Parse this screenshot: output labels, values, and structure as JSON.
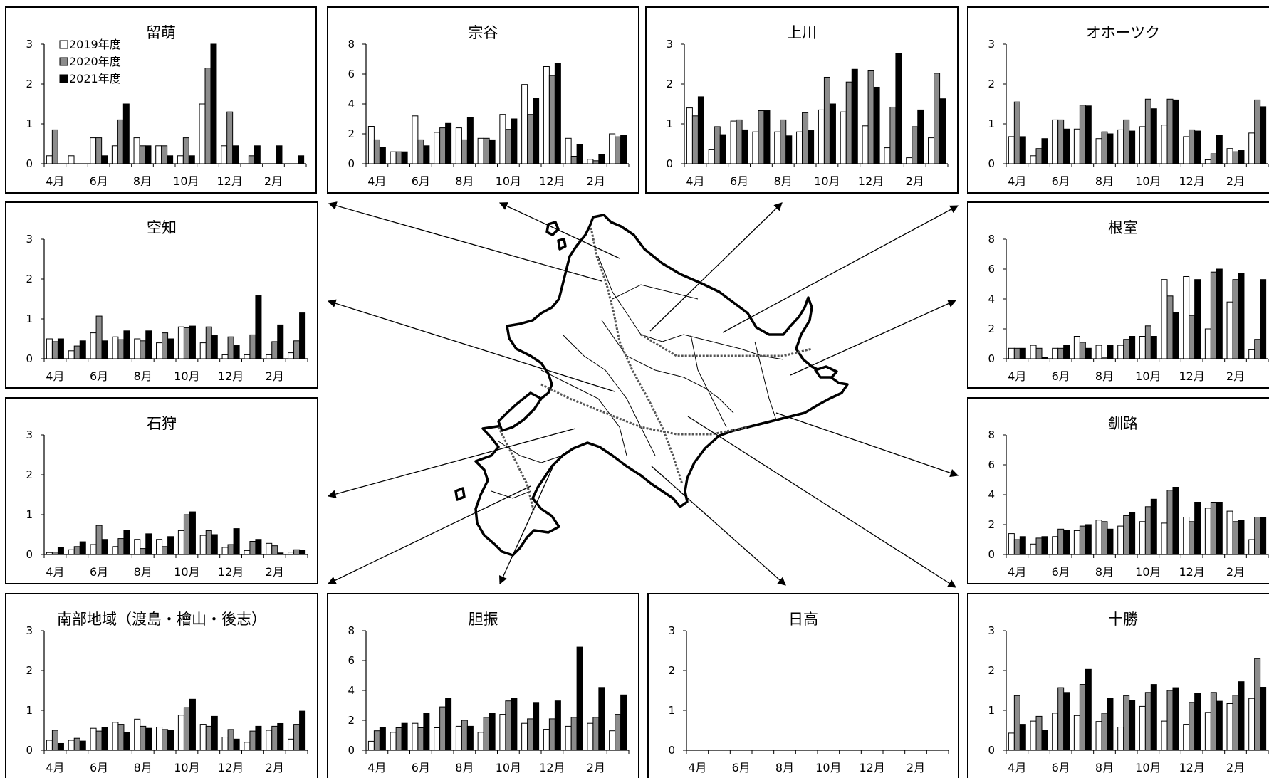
{
  "legend": {
    "labels": [
      "2019年度",
      "2020年度",
      "2021年度"
    ],
    "colors": [
      "#ffffff",
      "#8c8c8c",
      "#000000"
    ]
  },
  "map": {
    "description_icon": "hokkaido-map-icon"
  },
  "chart_data": [
    {
      "id": "rumoi",
      "type": "bar",
      "title": "留萌",
      "ylim": [
        0,
        3
      ],
      "yticks": [
        0,
        1,
        2,
        3
      ],
      "categories": [
        "4月",
        "5月",
        "6月",
        "7月",
        "8月",
        "9月",
        "10月",
        "11月",
        "12月",
        "1月",
        "2月",
        "3月"
      ],
      "xtick_labels": [
        "4月",
        "6月",
        "8月",
        "10月",
        "12月",
        "2月"
      ],
      "series": [
        {
          "name": "2019年度",
          "values": [
            0.2,
            0.2,
            0.65,
            0.45,
            0.65,
            0.45,
            0.2,
            1.5,
            0.45,
            0,
            0,
            0
          ]
        },
        {
          "name": "2020年度",
          "values": [
            0.85,
            0,
            0.65,
            1.1,
            0.45,
            0.45,
            0.65,
            2.4,
            1.3,
            0.2,
            0,
            0
          ]
        },
        {
          "name": "2021年度",
          "values": [
            0,
            0,
            0.2,
            1.5,
            0.45,
            0.2,
            0.2,
            3.0,
            0.45,
            0.45,
            0.45,
            0.2
          ]
        }
      ]
    },
    {
      "id": "soya",
      "type": "bar",
      "title": "宗谷",
      "ylim": [
        0,
        8
      ],
      "yticks": [
        0,
        2,
        4,
        6,
        8
      ],
      "categories": [
        "4月",
        "5月",
        "6月",
        "7月",
        "8月",
        "9月",
        "10月",
        "11月",
        "12月",
        "1月",
        "2月",
        "3月"
      ],
      "xtick_labels": [
        "4月",
        "6月",
        "8月",
        "10月",
        "12月",
        "2月"
      ],
      "series": [
        {
          "name": "2019年度",
          "values": [
            2.5,
            0.8,
            3.2,
            2.1,
            2.4,
            1.7,
            3.3,
            5.3,
            6.5,
            1.7,
            0.3,
            2.0
          ]
        },
        {
          "name": "2020年度",
          "values": [
            1.6,
            0.8,
            1.6,
            2.4,
            1.6,
            1.7,
            2.3,
            3.3,
            5.9,
            0.5,
            0.2,
            1.8
          ]
        },
        {
          "name": "2021年度",
          "values": [
            1.1,
            0.8,
            1.2,
            2.7,
            3.1,
            1.6,
            3.0,
            4.4,
            6.7,
            1.3,
            0.6,
            1.9
          ]
        }
      ]
    },
    {
      "id": "kamikawa",
      "type": "bar",
      "title": "上川",
      "ylim": [
        0,
        3
      ],
      "yticks": [
        0,
        1,
        2,
        3
      ],
      "categories": [
        "4月",
        "5月",
        "6月",
        "7月",
        "8月",
        "9月",
        "10月",
        "11月",
        "12月",
        "1月",
        "2月",
        "3月"
      ],
      "xtick_labels": [
        "4月",
        "6月",
        "8月",
        "10月",
        "12月",
        "2月"
      ],
      "series": [
        {
          "name": "2019年度",
          "values": [
            1.4,
            0.35,
            1.07,
            0.8,
            0.8,
            0.8,
            1.35,
            1.3,
            0.95,
            0.4,
            0.15,
            0.65
          ]
        },
        {
          "name": "2020年度",
          "values": [
            1.2,
            0.93,
            1.1,
            1.33,
            1.1,
            1.28,
            2.17,
            2.05,
            2.33,
            1.42,
            0.93,
            2.27
          ]
        },
        {
          "name": "2021年度",
          "values": [
            1.68,
            0.73,
            0.85,
            1.33,
            0.7,
            0.83,
            1.5,
            2.37,
            1.92,
            2.77,
            1.35,
            1.63
          ]
        }
      ]
    },
    {
      "id": "okhotsk",
      "type": "bar",
      "title": "オホーツク",
      "ylim": [
        0,
        3
      ],
      "yticks": [
        0,
        1,
        2,
        3
      ],
      "categories": [
        "4月",
        "5月",
        "6月",
        "7月",
        "8月",
        "9月",
        "10月",
        "11月",
        "12月",
        "1月",
        "2月",
        "3月"
      ],
      "xtick_labels": [
        "4月",
        "6月",
        "8月",
        "10月",
        "12月",
        "2月"
      ],
      "series": [
        {
          "name": "2019年度",
          "values": [
            0.68,
            0.2,
            1.1,
            0.87,
            0.63,
            0.85,
            0.93,
            0.97,
            0.68,
            0.1,
            0.38,
            0.77
          ]
        },
        {
          "name": "2020年度",
          "values": [
            1.55,
            0.38,
            1.1,
            1.47,
            0.8,
            1.1,
            1.62,
            1.62,
            0.85,
            0.25,
            0.3,
            1.6
          ]
        },
        {
          "name": "2021年度",
          "values": [
            0.68,
            0.63,
            0.87,
            1.45,
            0.75,
            0.82,
            1.38,
            1.6,
            0.82,
            0.72,
            0.33,
            1.43
          ]
        }
      ]
    },
    {
      "id": "sorachi",
      "type": "bar",
      "title": "空知",
      "ylim": [
        0,
        3
      ],
      "yticks": [
        0,
        1,
        2,
        3
      ],
      "categories": [
        "4月",
        "5月",
        "6月",
        "7月",
        "8月",
        "9月",
        "10月",
        "11月",
        "12月",
        "1月",
        "2月",
        "3月"
      ],
      "xtick_labels": [
        "4月",
        "6月",
        "8月",
        "10月",
        "12月",
        "2月"
      ],
      "series": [
        {
          "name": "2019年度",
          "values": [
            0.5,
            0.2,
            0.65,
            0.55,
            0.5,
            0.4,
            0.8,
            0.4,
            0.1,
            0.1,
            0.1,
            0.15
          ]
        },
        {
          "name": "2020年度",
          "values": [
            0.43,
            0.32,
            1.07,
            0.48,
            0.45,
            0.65,
            0.78,
            0.8,
            0.55,
            0.6,
            0.43,
            0.45
          ]
        },
        {
          "name": "2021年度",
          "values": [
            0.5,
            0.45,
            0.45,
            0.7,
            0.7,
            0.5,
            0.82,
            0.58,
            0.33,
            1.58,
            0.85,
            1.15
          ]
        }
      ]
    },
    {
      "id": "nemuro",
      "type": "bar",
      "title": "根室",
      "ylim": [
        0,
        8
      ],
      "yticks": [
        0,
        2,
        4,
        6,
        8
      ],
      "categories": [
        "4月",
        "5月",
        "6月",
        "7月",
        "8月",
        "9月",
        "10月",
        "11月",
        "12月",
        "1月",
        "2月",
        "3月"
      ],
      "xtick_labels": [
        "4月",
        "6月",
        "8月",
        "10月",
        "12月",
        "2月"
      ],
      "series": [
        {
          "name": "2019年度",
          "values": [
            0.7,
            0.9,
            0.7,
            1.5,
            0.9,
            0.9,
            1.5,
            5.3,
            5.5,
            2.0,
            3.8,
            0.6
          ]
        },
        {
          "name": "2020年度",
          "values": [
            0.7,
            0.7,
            0.7,
            1.1,
            0.1,
            1.3,
            2.2,
            4.2,
            2.9,
            5.8,
            5.3,
            1.3
          ]
        },
        {
          "name": "2021年度",
          "values": [
            0.7,
            0.1,
            0.9,
            0.7,
            0.9,
            1.5,
            1.5,
            3.1,
            5.3,
            6.0,
            5.7,
            5.3
          ]
        }
      ]
    },
    {
      "id": "ishikari",
      "type": "bar",
      "title": "石狩",
      "ylim": [
        0,
        3
      ],
      "yticks": [
        0,
        1,
        2,
        3
      ],
      "categories": [
        "4月",
        "5月",
        "6月",
        "7月",
        "8月",
        "9月",
        "10月",
        "11月",
        "12月",
        "1月",
        "2月",
        "3月"
      ],
      "xtick_labels": [
        "4月",
        "6月",
        "8月",
        "10月",
        "12月",
        "2月"
      ],
      "series": [
        {
          "name": "2019年度",
          "values": [
            0.05,
            0.12,
            0.25,
            0.2,
            0.38,
            0.38,
            0.6,
            0.48,
            0.18,
            0.1,
            0.28,
            0.06
          ]
        },
        {
          "name": "2020年度",
          "values": [
            0.06,
            0.2,
            0.73,
            0.4,
            0.15,
            0.2,
            1.0,
            0.6,
            0.25,
            0.33,
            0.22,
            0.12
          ]
        },
        {
          "name": "2021年度",
          "values": [
            0.18,
            0.32,
            0.38,
            0.6,
            0.52,
            0.45,
            1.07,
            0.5,
            0.65,
            0.38,
            0.04,
            0.1
          ]
        }
      ]
    },
    {
      "id": "kushiro",
      "type": "bar",
      "title": "釧路",
      "ylim": [
        0,
        8
      ],
      "yticks": [
        0,
        2,
        4,
        6,
        8
      ],
      "categories": [
        "4月",
        "5月",
        "6月",
        "7月",
        "8月",
        "9月",
        "10月",
        "11月",
        "12月",
        "1月",
        "2月",
        "3月"
      ],
      "xtick_labels": [
        "4月",
        "6月",
        "8月",
        "10月",
        "12月",
        "2月"
      ],
      "series": [
        {
          "name": "2019年度",
          "values": [
            1.4,
            0.7,
            1.2,
            1.6,
            2.3,
            1.9,
            2.2,
            2.1,
            2.5,
            3.1,
            2.9,
            1.0
          ]
        },
        {
          "name": "2020年度",
          "values": [
            1.0,
            1.1,
            1.7,
            1.9,
            2.2,
            2.6,
            3.2,
            4.3,
            2.2,
            3.5,
            2.2,
            2.5
          ]
        },
        {
          "name": "2021年度",
          "values": [
            1.2,
            1.2,
            1.6,
            2.0,
            1.7,
            2.8,
            3.7,
            4.5,
            3.5,
            3.5,
            2.3,
            2.5
          ]
        }
      ]
    },
    {
      "id": "nanbu",
      "type": "bar",
      "title": "南部地域（渡島・檜山・後志）",
      "ylim": [
        0,
        3
      ],
      "yticks": [
        0,
        1,
        2,
        3
      ],
      "categories": [
        "4月",
        "5月",
        "6月",
        "7月",
        "8月",
        "9月",
        "10月",
        "11月",
        "12月",
        "1月",
        "2月",
        "3月"
      ],
      "xtick_labels": [
        "4月",
        "6月",
        "8月",
        "10月",
        "12月",
        "2月"
      ],
      "series": [
        {
          "name": "2019年度",
          "values": [
            0.25,
            0.25,
            0.55,
            0.7,
            0.78,
            0.58,
            0.88,
            0.65,
            0.33,
            0.2,
            0.5,
            0.28
          ]
        },
        {
          "name": "2020年度",
          "values": [
            0.5,
            0.3,
            0.48,
            0.65,
            0.6,
            0.52,
            1.07,
            0.6,
            0.52,
            0.48,
            0.6,
            0.65
          ]
        },
        {
          "name": "2021年度",
          "values": [
            0.17,
            0.23,
            0.58,
            0.45,
            0.55,
            0.5,
            1.28,
            0.85,
            0.28,
            0.6,
            0.67,
            0.98
          ]
        }
      ]
    },
    {
      "id": "iburi",
      "type": "bar",
      "title": "胆振",
      "ylim": [
        0,
        8
      ],
      "yticks": [
        0,
        2,
        4,
        6,
        8
      ],
      "categories": [
        "4月",
        "5月",
        "6月",
        "7月",
        "8月",
        "9月",
        "10月",
        "11月",
        "12月",
        "1月",
        "2月",
        "3月"
      ],
      "xtick_labels": [
        "4月",
        "6月",
        "8月",
        "10月",
        "12月",
        "2月"
      ],
      "series": [
        {
          "name": "2019年度",
          "values": [
            0.6,
            1.2,
            1.8,
            1.5,
            1.6,
            1.2,
            2.4,
            1.8,
            1.4,
            1.6,
            1.8,
            1.3
          ]
        },
        {
          "name": "2020年度",
          "values": [
            1.3,
            1.5,
            1.5,
            2.9,
            2.0,
            2.2,
            3.3,
            2.1,
            2.1,
            2.2,
            2.2,
            2.4
          ]
        },
        {
          "name": "2021年度",
          "values": [
            1.5,
            1.8,
            2.5,
            3.5,
            1.6,
            2.5,
            3.5,
            3.2,
            3.3,
            6.9,
            4.2,
            3.7
          ]
        }
      ]
    },
    {
      "id": "hidaka",
      "type": "bar",
      "title": "日高",
      "ylim": [
        0,
        3
      ],
      "yticks": [
        0,
        1,
        2,
        3
      ],
      "categories": [
        "4月",
        "5月",
        "6月",
        "7月",
        "8月",
        "9月",
        "10月",
        "11月",
        "12月",
        "1月",
        "2月",
        "3月"
      ],
      "xtick_labels": [
        "4月",
        "6月",
        "8月",
        "10月",
        "12月",
        "2月"
      ],
      "series": [
        {
          "name": "2019年度",
          "values": [
            0,
            0,
            0,
            0,
            0,
            0,
            0,
            0,
            0,
            0,
            0,
            0
          ]
        },
        {
          "name": "2020年度",
          "values": [
            0,
            0,
            0,
            0,
            0,
            0,
            0,
            0,
            0,
            0,
            0,
            0
          ]
        },
        {
          "name": "2021年度",
          "values": [
            0,
            0,
            0,
            0,
            0,
            0,
            0,
            0,
            0,
            0,
            0,
            0
          ]
        }
      ]
    },
    {
      "id": "tokachi",
      "type": "bar",
      "title": "十勝",
      "ylim": [
        0,
        3
      ],
      "yticks": [
        0,
        1,
        2,
        3
      ],
      "categories": [
        "4月",
        "5月",
        "6月",
        "7月",
        "8月",
        "9月",
        "10月",
        "11月",
        "12月",
        "1月",
        "2月",
        "3月"
      ],
      "xtick_labels": [
        "4月",
        "6月",
        "8月",
        "10月",
        "12月",
        "2月"
      ],
      "series": [
        {
          "name": "2019年度",
          "values": [
            0.43,
            0.73,
            0.93,
            0.87,
            0.72,
            0.58,
            1.1,
            0.73,
            0.65,
            0.95,
            1.17,
            1.3
          ]
        },
        {
          "name": "2020年度",
          "values": [
            1.37,
            0.85,
            1.57,
            1.65,
            0.93,
            1.37,
            1.45,
            1.5,
            1.2,
            1.45,
            1.38,
            2.3
          ]
        },
        {
          "name": "2021年度",
          "values": [
            0.65,
            0.5,
            1.45,
            2.03,
            1.3,
            1.25,
            1.65,
            1.57,
            1.43,
            1.23,
            1.72,
            1.58
          ]
        }
      ]
    }
  ]
}
